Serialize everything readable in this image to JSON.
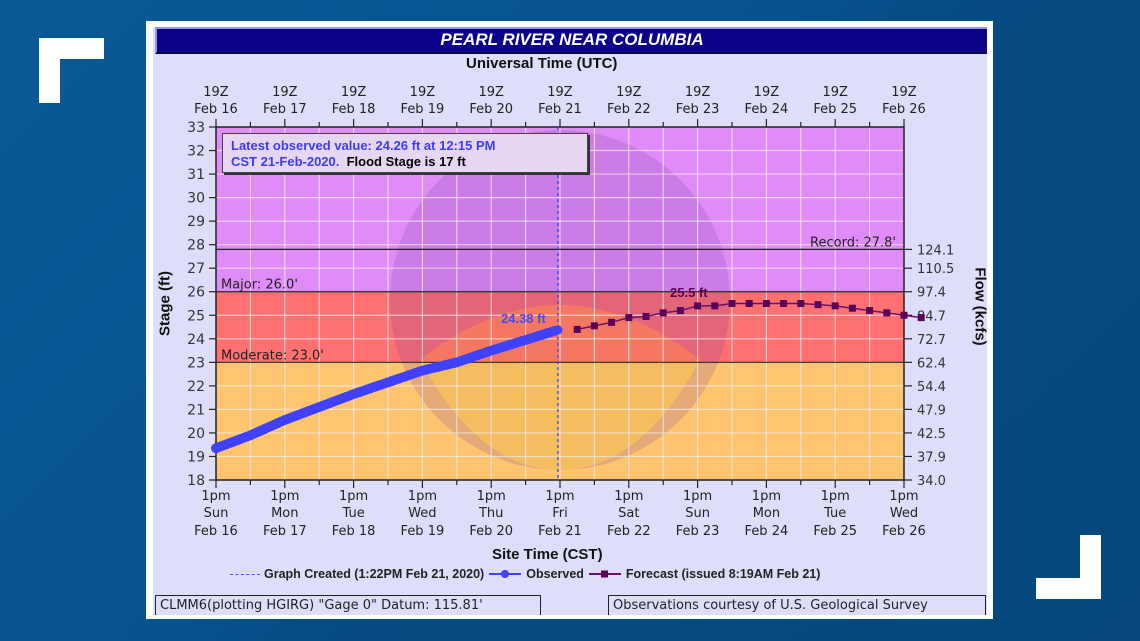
{
  "title": "PEARL RIVER NEAR COLUMBIA",
  "top_axis_title": "Universal Time (UTC)",
  "bottom_axis_title": "Site Time (CST)",
  "left_axis_title": "Stage (ft)",
  "right_axis_title": "Flow (kcfs)",
  "info_box": {
    "line1": "Latest observed value: 24.26 ft at 12:15 PM",
    "line2_blue": "CST 21-Feb-2020.",
    "line2_black": "Flood Stage is 17 ft"
  },
  "observed_peak_label": "24.38 ft",
  "forecast_peak_label": "25.5 ft",
  "legend": {
    "graph_created": "Graph Created (1:22PM Feb 21, 2020)",
    "observed": "Observed",
    "forecast": "Forecast (issued 8:19AM Feb 21)"
  },
  "footer": {
    "left": "CLMM6(plotting HGIRG) \"Gage 0\" Datum: 115.81'",
    "right": "Observations courtesy of U.S. Geological Survey"
  },
  "colors": {
    "record_zone": "#e08cf8",
    "major_zone": "#ff7070",
    "moderate_zone": "#ffc46e",
    "observed": "#4040ff",
    "forecast": "#5a005a",
    "title_bar": "#0b0088",
    "panel": "#dedefa"
  },
  "chart_data": {
    "type": "line",
    "title": "PEARL RIVER NEAR COLUMBIA",
    "xlabel": "Site Time (CST)",
    "x2label": "Universal Time (UTC)",
    "ylabel": "Stage (ft)",
    "y2label": "Flow (kcfs)",
    "ylim": [
      18,
      33
    ],
    "grid": true,
    "legend_position": "bottom",
    "x_ticks_bottom": [
      {
        "time": "1pm",
        "day": "Sun",
        "date": "Feb 16"
      },
      {
        "time": "1pm",
        "day": "Mon",
        "date": "Feb 17"
      },
      {
        "time": "1pm",
        "day": "Tue",
        "date": "Feb 18"
      },
      {
        "time": "1pm",
        "day": "Wed",
        "date": "Feb 19"
      },
      {
        "time": "1pm",
        "day": "Thu",
        "date": "Feb 20"
      },
      {
        "time": "1pm",
        "day": "Fri",
        "date": "Feb 21"
      },
      {
        "time": "1pm",
        "day": "Sat",
        "date": "Feb 22"
      },
      {
        "time": "1pm",
        "day": "Sun",
        "date": "Feb 23"
      },
      {
        "time": "1pm",
        "day": "Mon",
        "date": "Feb 24"
      },
      {
        "time": "1pm",
        "day": "Tue",
        "date": "Feb 25"
      },
      {
        "time": "1pm",
        "day": "Wed",
        "date": "Feb 26"
      }
    ],
    "x_ticks_top": [
      {
        "time": "19Z",
        "date": "Feb 16"
      },
      {
        "time": "19Z",
        "date": "Feb 17"
      },
      {
        "time": "19Z",
        "date": "Feb 18"
      },
      {
        "time": "19Z",
        "date": "Feb 19"
      },
      {
        "time": "19Z",
        "date": "Feb 20"
      },
      {
        "time": "19Z",
        "date": "Feb 21"
      },
      {
        "time": "19Z",
        "date": "Feb 22"
      },
      {
        "time": "19Z",
        "date": "Feb 23"
      },
      {
        "time": "19Z",
        "date": "Feb 24"
      },
      {
        "time": "19Z",
        "date": "Feb 25"
      },
      {
        "time": "19Z",
        "date": "Feb 26"
      }
    ],
    "y_ticks": [
      18,
      19,
      20,
      21,
      22,
      23,
      24,
      25,
      26,
      27,
      28,
      29,
      30,
      31,
      32,
      33
    ],
    "y2_ticks": [
      {
        "stage": 18,
        "flow": "34.0"
      },
      {
        "stage": 19,
        "flow": "37.9"
      },
      {
        "stage": 20,
        "flow": "42.5"
      },
      {
        "stage": 21,
        "flow": "47.9"
      },
      {
        "stage": 22,
        "flow": "54.4"
      },
      {
        "stage": 23,
        "flow": "62.4"
      },
      {
        "stage": 24,
        "flow": "72.7"
      },
      {
        "stage": 25,
        "flow": "84.7"
      },
      {
        "stage": 26,
        "flow": "97.4"
      },
      {
        "stage": 27,
        "flow": "110.5"
      },
      {
        "stage": 27.8,
        "flow": "124.1"
      }
    ],
    "thresholds": [
      {
        "name": "Record",
        "label": "Record: 27.8'",
        "value": 27.8
      },
      {
        "name": "Major",
        "label": "Major: 26.0'",
        "value": 26.0
      },
      {
        "name": "Moderate",
        "label": "Moderate: 23.0'",
        "value": 23.0
      }
    ],
    "graph_created_day": 4.97,
    "series": [
      {
        "name": "Observed",
        "x_days_since_feb16_1pm": [
          0,
          0.5,
          1,
          1.5,
          2,
          2.5,
          3,
          3.5,
          4,
          4.5,
          4.97
        ],
        "values": [
          19.35,
          19.9,
          20.55,
          21.1,
          21.65,
          22.15,
          22.65,
          23.0,
          23.5,
          23.95,
          24.38
        ]
      },
      {
        "name": "Forecast",
        "x_days_since_feb16_1pm": [
          5.25,
          5.5,
          5.75,
          6.0,
          6.25,
          6.5,
          6.75,
          7.0,
          7.25,
          7.5,
          7.75,
          8.0,
          8.25,
          8.5,
          8.75,
          9.0,
          9.25,
          9.5,
          9.75,
          10.0,
          10.25
        ],
        "values": [
          24.4,
          24.55,
          24.7,
          24.9,
          24.95,
          25.1,
          25.2,
          25.4,
          25.4,
          25.5,
          25.5,
          25.5,
          25.5,
          25.5,
          25.45,
          25.4,
          25.3,
          25.2,
          25.1,
          25.0,
          24.9
        ]
      }
    ]
  }
}
